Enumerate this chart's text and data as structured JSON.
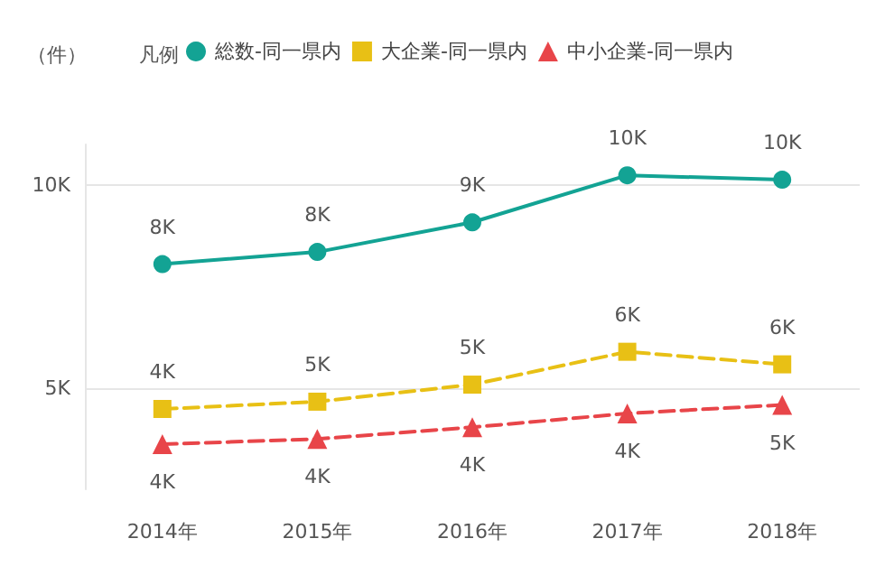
{
  "chart_data": {
    "type": "line",
    "ylabel": "（件）",
    "legend_title": "凡例",
    "legend": "top left",
    "grid": "y",
    "categories": [
      "2014年",
      "2015年",
      "2016年",
      "2017年",
      "2018年"
    ],
    "ylim": [
      2500,
      11000
    ],
    "yticks": [
      {
        "value": 5000,
        "label": "5K"
      },
      {
        "value": 10000,
        "label": "10K"
      }
    ],
    "series": [
      {
        "name": "総数-同一県内",
        "color": "#13a394",
        "marker": "circle",
        "line_style": "solid",
        "values": [
          8050,
          8350,
          9080,
          10240,
          10130
        ],
        "value_labels": [
          "8K",
          "8K",
          "9K",
          "10K",
          "10K"
        ]
      },
      {
        "name": "大企業-同一県内",
        "color": "#e8c015",
        "marker": "square",
        "line_style": "dashed",
        "values": [
          4480,
          4660,
          5080,
          5890,
          5580
        ],
        "value_labels": [
          "4K",
          "5K",
          "5K",
          "6K",
          "6K"
        ]
      },
      {
        "name": "中小企業-同一県内",
        "color": "#e84549",
        "marker": "triangle",
        "line_style": "dashed",
        "values": [
          3610,
          3740,
          4030,
          4370,
          4580
        ],
        "value_labels": [
          "4K",
          "4K",
          "4K",
          "4K",
          "5K"
        ]
      }
    ]
  }
}
